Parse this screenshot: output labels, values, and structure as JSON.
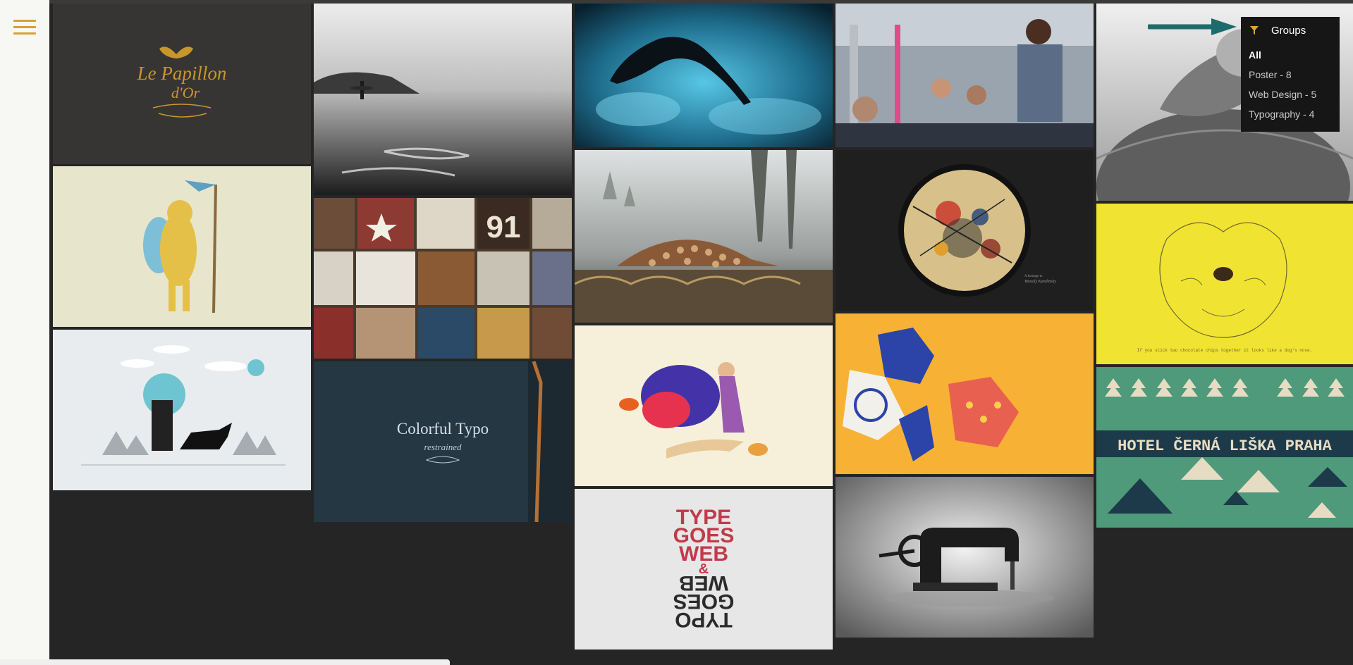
{
  "menu": {
    "icon": "hamburger-menu-icon"
  },
  "filter": {
    "title": "Groups",
    "icon": "funnel-filter-icon",
    "items": [
      {
        "label": "All",
        "active": true
      },
      {
        "label": "Poster - 8",
        "active": false
      },
      {
        "label": "Web Design - 5",
        "active": false
      },
      {
        "label": "Typography - 4",
        "active": false
      }
    ]
  },
  "tiles": {
    "papillon_line1": "Le Papillon",
    "papillon_line2": "d'Or",
    "colorful_title": "Colorful Typo",
    "colorful_sub": "restrained",
    "kandinsky_caption1": "A homage to",
    "kandinsky_caption2": "Wassily Kandinsky",
    "type_top1": "TYPE",
    "type_top2": "GOES",
    "type_top3": "WEB",
    "type_amp": "&",
    "type_bottom1": "TYPO",
    "type_bottom2": "GOES",
    "type_bottom3": "WEB",
    "bulldog_caption": "If you stick two chocolate chips together it looks like a dog's nose.",
    "hotel_title": "HOTEL ČERNÁ LIŠKA PRAHA"
  },
  "colors": {
    "accent": "#d9a033",
    "panel_bg": "#161616",
    "arrow": "#1e6b6b"
  }
}
